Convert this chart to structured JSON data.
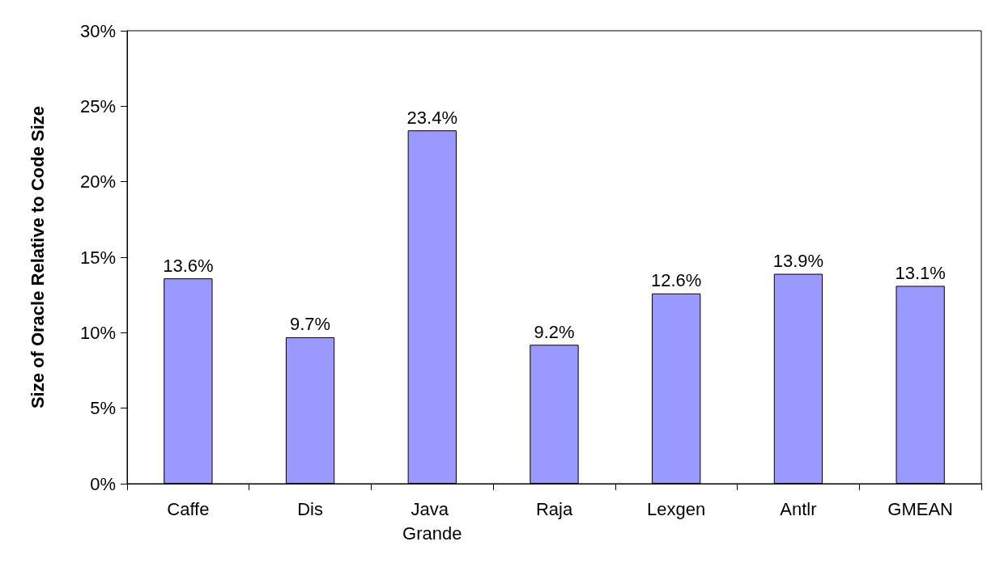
{
  "chart_data": {
    "type": "bar",
    "ylabel": "Size of Oracle Relative to Code Size",
    "categories": [
      "Caffe",
      "Dis",
      "Java Grande",
      "Raja",
      "Lexgen",
      "Antlr",
      "GMEAN"
    ],
    "values": [
      13.6,
      9.7,
      23.4,
      9.2,
      12.6,
      13.9,
      13.1
    ],
    "value_labels": [
      "13.6%",
      "9.7%",
      "23.4%",
      "9.2%",
      "12.6%",
      "13.9%",
      "13.1%"
    ],
    "color": "#9999ff",
    "ylim": [
      0,
      30
    ],
    "yticks": [
      {
        "value": 0,
        "label": "0%"
      },
      {
        "value": 5,
        "label": "5%"
      },
      {
        "value": 10,
        "label": "10%"
      },
      {
        "value": 15,
        "label": "15%"
      },
      {
        "value": 20,
        "label": "20%"
      },
      {
        "value": 25,
        "label": "25%"
      },
      {
        "value": 30,
        "label": "30%"
      }
    ],
    "grid": false
  }
}
